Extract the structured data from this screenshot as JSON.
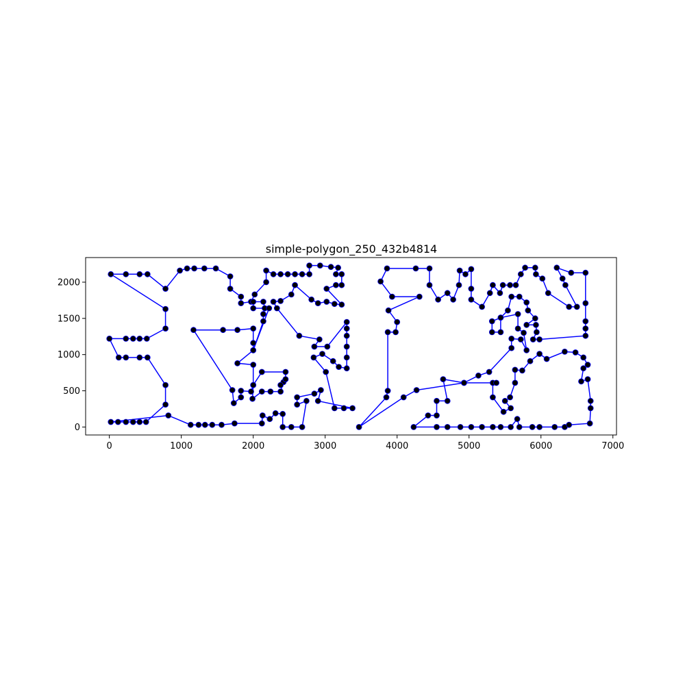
{
  "chart_data": {
    "type": "line",
    "title": "simple-polygon_250_432b4814",
    "xlabel": "",
    "ylabel": "",
    "xlim": [
      -330,
      7050
    ],
    "ylim": [
      -110,
      2340
    ],
    "xticks": [
      0,
      1000,
      2000,
      3000,
      4000,
      5000,
      6000,
      7000
    ],
    "yticks": [
      0,
      500,
      1000,
      1500,
      2000
    ],
    "grid": false,
    "legend": "none",
    "line_color": "#0000ff",
    "marker_color": "#000000",
    "closed": true,
    "series": [
      {
        "points": [
          [
            20,
            2110
          ],
          [
            230,
            2110
          ],
          [
            420,
            2110
          ],
          [
            530,
            2110
          ],
          [
            780,
            1910
          ],
          [
            980,
            2160
          ],
          [
            1080,
            2190
          ],
          [
            1180,
            2190
          ],
          [
            1320,
            2190
          ],
          [
            1480,
            2190
          ],
          [
            1680,
            2080
          ],
          [
            1680,
            1910
          ],
          [
            1830,
            1800
          ],
          [
            1830,
            1710
          ],
          [
            1970,
            1730
          ],
          [
            2020,
            1830
          ],
          [
            2180,
            2000
          ],
          [
            2180,
            2160
          ],
          [
            2280,
            2110
          ],
          [
            2380,
            2110
          ],
          [
            2480,
            2110
          ],
          [
            2580,
            2110
          ],
          [
            2680,
            2110
          ],
          [
            2780,
            2110
          ],
          [
            2780,
            2230
          ],
          [
            2930,
            2230
          ],
          [
            3080,
            2210
          ],
          [
            3180,
            2200
          ],
          [
            3150,
            2110
          ],
          [
            3230,
            2110
          ],
          [
            3230,
            1960
          ],
          [
            3150,
            1960
          ],
          [
            3020,
            1910
          ],
          [
            3230,
            1690
          ],
          [
            3130,
            1700
          ],
          [
            3020,
            1730
          ],
          [
            2900,
            1710
          ],
          [
            2810,
            1760
          ],
          [
            2580,
            1960
          ],
          [
            2530,
            1830
          ],
          [
            2380,
            1740
          ],
          [
            2280,
            1730
          ],
          [
            2330,
            1640
          ],
          [
            2640,
            1260
          ],
          [
            2920,
            1210
          ],
          [
            2850,
            1110
          ],
          [
            3030,
            1110
          ],
          [
            3300,
            1450
          ],
          [
            3300,
            1360
          ],
          [
            3300,
            1260
          ],
          [
            3300,
            1110
          ],
          [
            3300,
            960
          ],
          [
            3300,
            810
          ],
          [
            3190,
            830
          ],
          [
            3110,
            910
          ],
          [
            2960,
            1010
          ],
          [
            2840,
            960
          ],
          [
            3010,
            760
          ],
          [
            3130,
            260
          ],
          [
            3260,
            260
          ],
          [
            3380,
            260
          ],
          [
            2900,
            360
          ],
          [
            2940,
            510
          ],
          [
            2850,
            460
          ],
          [
            2610,
            410
          ],
          [
            2610,
            310
          ],
          [
            2740,
            360
          ],
          [
            2680,
            0
          ],
          [
            2530,
            0
          ],
          [
            2410,
            0
          ],
          [
            2410,
            180
          ],
          [
            2310,
            190
          ],
          [
            2230,
            110
          ],
          [
            2130,
            160
          ],
          [
            2120,
            50
          ],
          [
            1740,
            50
          ],
          [
            1560,
            30
          ],
          [
            1430,
            30
          ],
          [
            1330,
            30
          ],
          [
            1240,
            30
          ],
          [
            1130,
            30
          ],
          [
            820,
            160
          ],
          [
            20,
            70
          ],
          [
            120,
            70
          ],
          [
            230,
            70
          ],
          [
            330,
            70
          ],
          [
            420,
            70
          ],
          [
            510,
            70
          ],
          [
            780,
            310
          ],
          [
            780,
            580
          ],
          [
            530,
            960
          ],
          [
            420,
            960
          ],
          [
            230,
            960
          ],
          [
            130,
            960
          ],
          [
            0,
            1220
          ],
          [
            230,
            1220
          ],
          [
            330,
            1220
          ],
          [
            420,
            1220
          ],
          [
            520,
            1220
          ],
          [
            780,
            1360
          ],
          [
            780,
            1630
          ],
          [
            20,
            2110
          ]
        ]
      },
      {
        "points": [
          [
            3470,
            0
          ],
          [
            3850,
            410
          ],
          [
            3870,
            500
          ],
          [
            3870,
            1310
          ],
          [
            3980,
            1310
          ],
          [
            4000,
            1450
          ],
          [
            3880,
            1610
          ],
          [
            4310,
            1800
          ],
          [
            3930,
            1800
          ],
          [
            3770,
            2010
          ],
          [
            3860,
            2190
          ],
          [
            4260,
            2190
          ],
          [
            4450,
            2190
          ],
          [
            4450,
            1960
          ],
          [
            4570,
            1760
          ],
          [
            4700,
            1850
          ],
          [
            4780,
            1760
          ],
          [
            4860,
            1960
          ],
          [
            4870,
            2160
          ],
          [
            4950,
            2110
          ],
          [
            5030,
            2180
          ],
          [
            5030,
            1910
          ],
          [
            5030,
            1760
          ],
          [
            5180,
            1660
          ],
          [
            5290,
            1850
          ],
          [
            5330,
            1960
          ],
          [
            5430,
            1850
          ],
          [
            5470,
            1960
          ],
          [
            5570,
            1960
          ],
          [
            5650,
            1960
          ],
          [
            5720,
            2110
          ],
          [
            5780,
            2200
          ],
          [
            5920,
            2200
          ],
          [
            5930,
            2110
          ],
          [
            6020,
            2050
          ],
          [
            6100,
            1850
          ],
          [
            6390,
            1660
          ],
          [
            6500,
            1660
          ],
          [
            6340,
            1960
          ],
          [
            6300,
            2050
          ],
          [
            6220,
            2200
          ],
          [
            6420,
            2130
          ],
          [
            6620,
            2130
          ],
          [
            6620,
            1710
          ],
          [
            6620,
            1460
          ],
          [
            6620,
            1360
          ],
          [
            6620,
            1260
          ],
          [
            5980,
            1210
          ],
          [
            5890,
            1210
          ],
          [
            5940,
            1310
          ],
          [
            5930,
            1410
          ],
          [
            5800,
            1410
          ],
          [
            5920,
            1500
          ],
          [
            5820,
            1610
          ],
          [
            5800,
            1720
          ],
          [
            5700,
            1800
          ],
          [
            5590,
            1800
          ],
          [
            5540,
            1610
          ],
          [
            5440,
            1510
          ],
          [
            5320,
            1460
          ],
          [
            5320,
            1310
          ],
          [
            5440,
            1310
          ],
          [
            5440,
            1510
          ],
          [
            5680,
            1560
          ],
          [
            5680,
            1360
          ],
          [
            5760,
            1300
          ],
          [
            5800,
            1060
          ],
          [
            5720,
            1210
          ],
          [
            5590,
            1220
          ],
          [
            5590,
            1090
          ],
          [
            5280,
            760
          ],
          [
            5130,
            710
          ],
          [
            4930,
            610
          ],
          [
            4640,
            660
          ],
          [
            4700,
            360
          ],
          [
            4550,
            360
          ],
          [
            4550,
            160
          ],
          [
            4430,
            160
          ],
          [
            4230,
            0
          ],
          [
            4550,
            0
          ],
          [
            4700,
            0
          ],
          [
            4880,
            0
          ],
          [
            5030,
            0
          ],
          [
            5180,
            0
          ],
          [
            5330,
            0
          ],
          [
            5440,
            0
          ],
          [
            5580,
            0
          ],
          [
            5670,
            110
          ],
          [
            5700,
            0
          ],
          [
            5880,
            0
          ],
          [
            5980,
            0
          ],
          [
            6190,
            0
          ],
          [
            6330,
            0
          ],
          [
            6390,
            30
          ],
          [
            6680,
            50
          ],
          [
            6690,
            260
          ],
          [
            6690,
            360
          ],
          [
            6650,
            660
          ],
          [
            6560,
            630
          ],
          [
            6590,
            810
          ],
          [
            6650,
            860
          ],
          [
            6590,
            960
          ],
          [
            6480,
            1030
          ],
          [
            6330,
            1040
          ],
          [
            6080,
            940
          ],
          [
            5980,
            1010
          ],
          [
            5850,
            910
          ],
          [
            5740,
            780
          ],
          [
            5640,
            790
          ],
          [
            5640,
            610
          ],
          [
            5570,
            410
          ],
          [
            5500,
            360
          ],
          [
            5580,
            260
          ],
          [
            5480,
            210
          ],
          [
            5330,
            410
          ],
          [
            5330,
            610
          ],
          [
            5380,
            610
          ],
          [
            4930,
            610
          ],
          [
            4270,
            510
          ],
          [
            4090,
            410
          ],
          [
            3470,
            0
          ]
        ]
      },
      {
        "points": [
          [
            1170,
            1340
          ],
          [
            1580,
            1340
          ],
          [
            1780,
            1340
          ],
          [
            2000,
            1360
          ],
          [
            2000,
            1160
          ],
          [
            2000,
            1060
          ],
          [
            2140,
            1460
          ],
          [
            2140,
            1560
          ],
          [
            2160,
            1640
          ],
          [
            2140,
            1730
          ],
          [
            2000,
            1730
          ],
          [
            2000,
            1640
          ],
          [
            2220,
            1640
          ],
          [
            2000,
            1060
          ],
          [
            1780,
            880
          ],
          [
            2000,
            860
          ],
          [
            2000,
            580
          ],
          [
            1990,
            390
          ],
          [
            2120,
            490
          ],
          [
            2240,
            490
          ],
          [
            2380,
            490
          ],
          [
            2420,
            620
          ],
          [
            2380,
            580
          ],
          [
            2450,
            660
          ],
          [
            2450,
            760
          ],
          [
            2120,
            760
          ],
          [
            2000,
            580
          ],
          [
            1970,
            490
          ],
          [
            1830,
            500
          ],
          [
            1830,
            410
          ],
          [
            1730,
            330
          ],
          [
            1710,
            510
          ],
          [
            1170,
            1340
          ]
        ]
      }
    ]
  }
}
